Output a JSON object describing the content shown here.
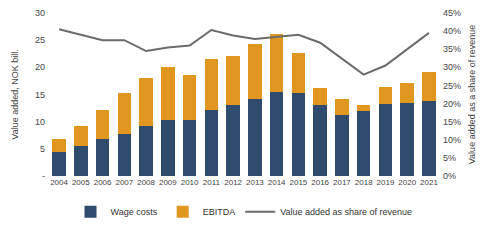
{
  "chart_data": {
    "type": "bar",
    "stacked": true,
    "grid": false,
    "legend": "bottom",
    "categories": [
      "2004",
      "2005",
      "2006",
      "2007",
      "2008",
      "2009",
      "2010",
      "2011",
      "2012",
      "2013",
      "2014",
      "2015",
      "2016",
      "2017",
      "2018",
      "2019",
      "2020",
      "2021"
    ],
    "y_label": "Value added, NOK bill.",
    "y2_label": "Value added as a share of revenue",
    "ylim": [
      0,
      30
    ],
    "yticks": [
      {
        "value": 0,
        "label": "-"
      },
      5,
      10,
      15,
      20,
      25,
      30
    ],
    "y2lim": [
      0,
      45
    ],
    "y2ticks": [
      {
        "value": 0,
        "label": "0%"
      },
      {
        "value": 5,
        "label": "5%"
      },
      {
        "value": 10,
        "label": "10%"
      },
      {
        "value": 15,
        "label": "15%"
      },
      {
        "value": 20,
        "label": "20%"
      },
      {
        "value": 25,
        "label": "25%"
      },
      {
        "value": 30,
        "label": "30%"
      },
      {
        "value": 35,
        "label": "35%"
      },
      {
        "value": 40,
        "label": "40%"
      },
      {
        "value": 45,
        "label": "45%"
      }
    ],
    "series": [
      {
        "name": "Wage costs",
        "type": "bar",
        "color": "#2f4b6e",
        "values": [
          4.5,
          5.5,
          6.8,
          7.8,
          9.2,
          10.3,
          10.3,
          12.2,
          13.0,
          14.2,
          15.4,
          15.3,
          13.0,
          11.3,
          12.0,
          13.3,
          13.4,
          13.8
        ]
      },
      {
        "name": "EBITDA",
        "type": "bar",
        "color": "#e0961f",
        "values": [
          2.3,
          3.7,
          5.4,
          7.4,
          8.8,
          9.8,
          8.3,
          9.4,
          9.1,
          10.1,
          10.7,
          7.3,
          3.2,
          2.9,
          1.0,
          3.0,
          3.7,
          5.4
        ]
      },
      {
        "name": "Value added as share of revenue",
        "type": "line",
        "axis": "y2",
        "color": "#6b6b6b",
        "values": [
          40.5,
          39.0,
          37.5,
          37.5,
          34.5,
          35.5,
          36.0,
          40.3,
          38.8,
          37.8,
          38.5,
          39.0,
          36.8,
          32.5,
          28.0,
          30.5,
          35.0,
          39.5
        ]
      }
    ]
  }
}
